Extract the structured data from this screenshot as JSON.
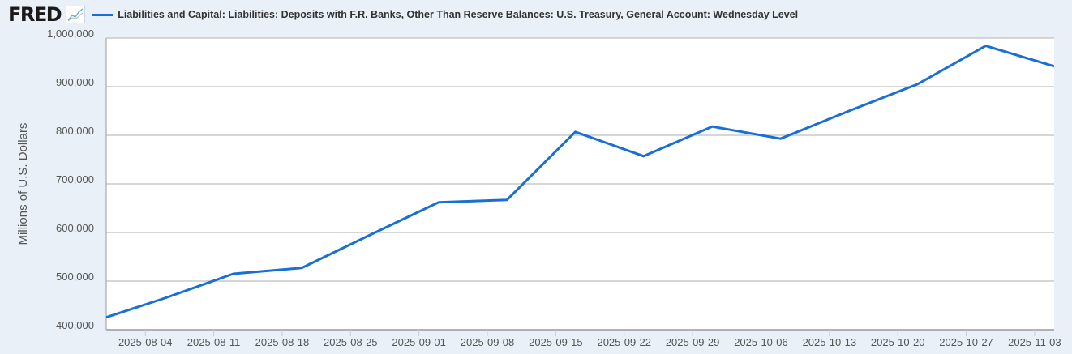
{
  "header": {
    "logo": "FRED",
    "series_title": "Liabilities and Capital: Liabilities: Deposits with F.R. Banks, Other Than Reserve Balances: U.S. Treasury, General Account: Wednesday Level"
  },
  "colors": {
    "line": "#1a6fd4",
    "grid": "#c8c8c8",
    "background": "#e9f0f8"
  },
  "chart_data": {
    "type": "line",
    "title": "Liabilities and Capital: Liabilities: Deposits with F.R. Banks, Other Than Reserve Balances: U.S. Treasury, General Account: Wednesday Level",
    "xlabel": "",
    "ylabel": "Millions of U.S. Dollars",
    "xlim": [
      "2025-07-31",
      "2025-11-05"
    ],
    "ylim": [
      400000,
      1000000
    ],
    "yticks": [
      400000,
      500000,
      600000,
      700000,
      800000,
      900000,
      1000000
    ],
    "ytick_labels": [
      "400,000",
      "500,000",
      "600,000",
      "700,000",
      "800,000",
      "900,000",
      "1,000,000"
    ],
    "xticks": [
      "2025-08-04",
      "2025-08-11",
      "2025-08-18",
      "2025-08-25",
      "2025-09-01",
      "2025-09-08",
      "2025-09-15",
      "2025-09-22",
      "2025-09-29",
      "2025-10-06",
      "2025-10-13",
      "2025-10-20",
      "2025-10-27",
      "2025-11-03"
    ],
    "grid": true,
    "series": [
      {
        "name": "Wednesday Level",
        "x": [
          "2025-07-30",
          "2025-08-06",
          "2025-08-13",
          "2025-08-20",
          "2025-08-27",
          "2025-09-03",
          "2025-09-10",
          "2025-09-17",
          "2025-09-24",
          "2025-10-01",
          "2025-10-08",
          "2025-10-15",
          "2025-10-22",
          "2025-10-29",
          "2025-11-05"
        ],
        "values": [
          419000,
          465000,
          515000,
          527000,
          595000,
          662000,
          667000,
          807000,
          757000,
          818000,
          793000,
          850000,
          905000,
          984000,
          942000
        ]
      }
    ]
  }
}
